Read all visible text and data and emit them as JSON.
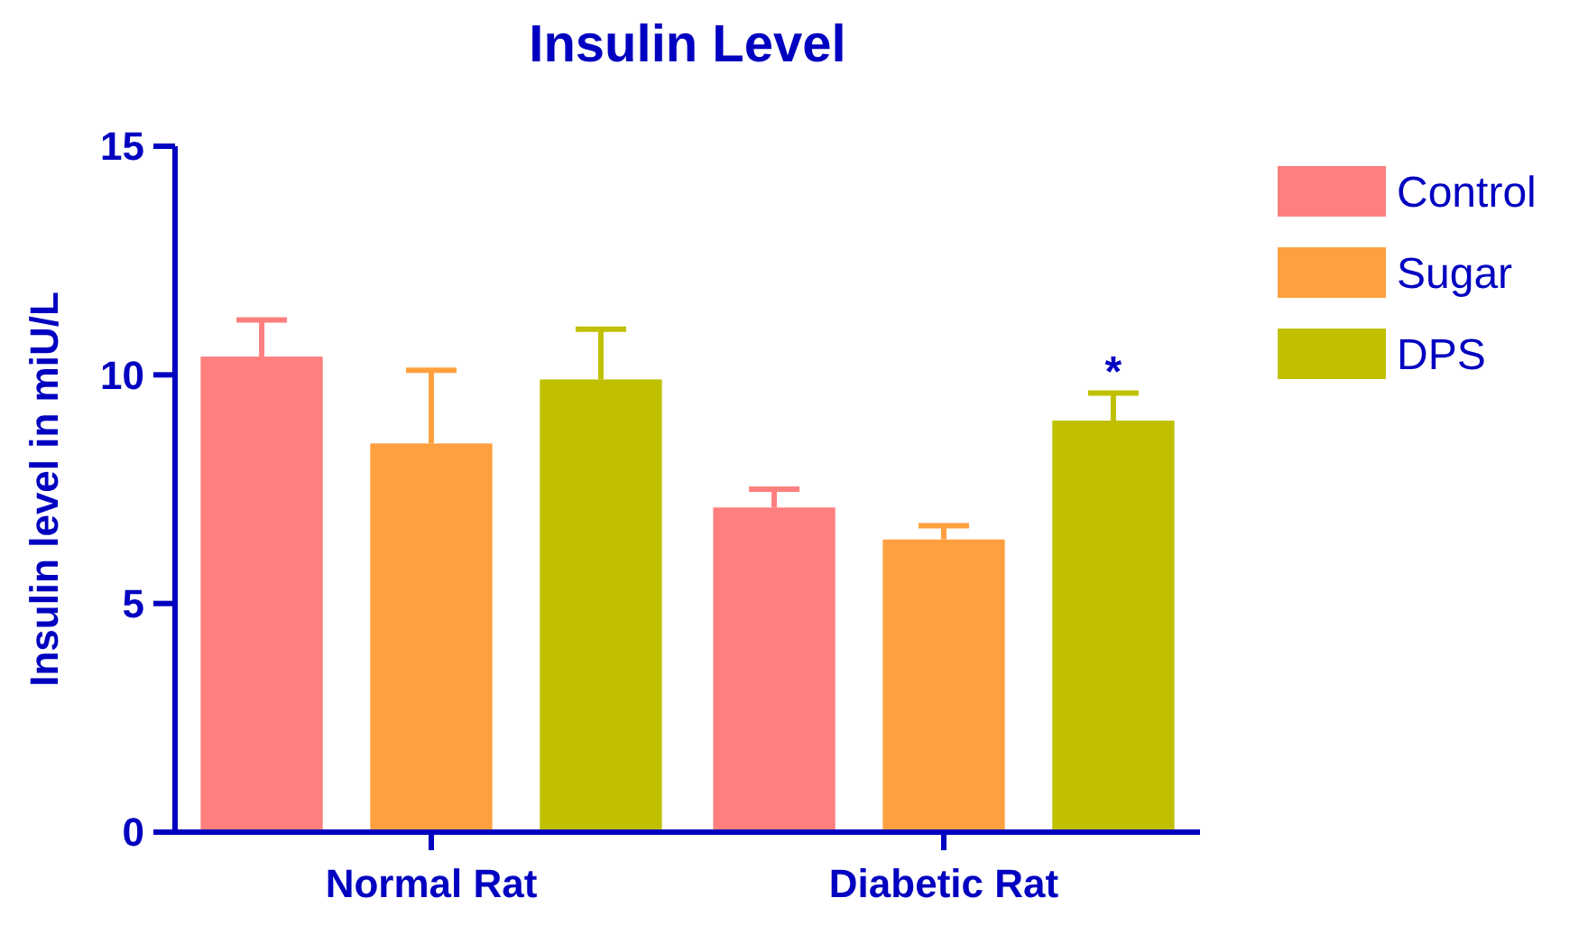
{
  "chart_data": {
    "type": "bar",
    "title": "Insulin Level",
    "ylabel": "Insulin level in miU/L",
    "categories": [
      "Normal Rat",
      "Diabetic Rat"
    ],
    "series": [
      {
        "name": "Control",
        "color": "#ff7f7f",
        "values": [
          10.4,
          7.1
        ],
        "errors": [
          0.8,
          0.4
        ]
      },
      {
        "name": "Sugar",
        "color": "#ffa040",
        "values": [
          8.5,
          6.4
        ],
        "errors": [
          1.6,
          0.3
        ]
      },
      {
        "name": "DPS",
        "color": "#c0c000",
        "values": [
          9.9,
          9.0
        ],
        "errors": [
          1.1,
          0.6
        ]
      }
    ],
    "ylim": [
      0,
      15
    ],
    "yticks": [
      0,
      5,
      10,
      15
    ],
    "grid": false,
    "legend": "right",
    "annotations": [
      "*"
    ]
  }
}
